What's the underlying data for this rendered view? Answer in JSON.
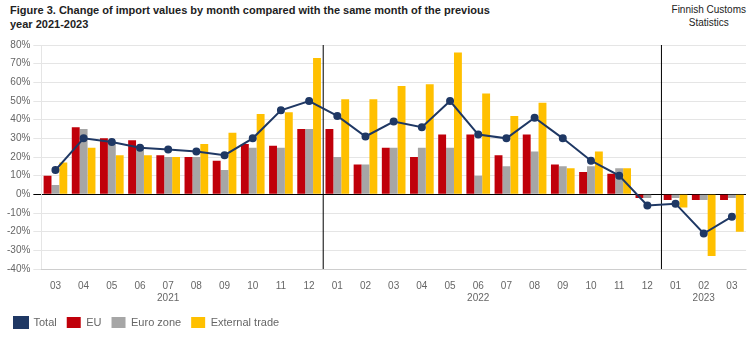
{
  "chart_data": {
    "type": "bar",
    "title": "Figure 3. Change of import values by month compared with the same month of the previous\nyear 2021-2023",
    "annotations": [
      "Finnish Customs\nStatistics"
    ],
    "categories": [
      "03",
      "04",
      "05",
      "06",
      "07",
      "08",
      "09",
      "10",
      "11",
      "12",
      "01",
      "02",
      "03",
      "04",
      "05",
      "06",
      "07",
      "08",
      "09",
      "10",
      "11",
      "12",
      "01",
      "02",
      "03"
    ],
    "category_groups": [
      "2021",
      "2021",
      "2021",
      "2021",
      "2021",
      "2021",
      "2021",
      "2021",
      "2021",
      "2021",
      "2022",
      "2022",
      "2022",
      "2022",
      "2022",
      "2022",
      "2022",
      "2022",
      "2022",
      "2022",
      "2022",
      "2022",
      "2023",
      "2023",
      "2023"
    ],
    "series": [
      {
        "name": "EU",
        "color": "#c0000a",
        "values": [
          10,
          36,
          30,
          29,
          21,
          20,
          18,
          27,
          26,
          35,
          35,
          16,
          25,
          20,
          32,
          32,
          21,
          32,
          16,
          12,
          11,
          -2,
          -3,
          -3,
          -3
        ]
      },
      {
        "name": "Euro zone",
        "color": "#a6a6a6",
        "values": [
          5,
          35,
          28,
          26,
          20,
          20,
          13,
          25,
          25,
          35,
          20,
          16,
          25,
          25,
          25,
          10,
          15,
          23,
          15,
          15,
          14,
          -2,
          -2,
          -3,
          -2
        ]
      },
      {
        "name": "External trade",
        "color": "#ffc000",
        "values": [
          17,
          25,
          21,
          21,
          20,
          27,
          33,
          43,
          44,
          73,
          51,
          51,
          58,
          59,
          76,
          54,
          42,
          49,
          14,
          23,
          14,
          0,
          -7,
          -33,
          -20
        ]
      },
      {
        "name": "Total",
        "type": "line",
        "marker": "circle",
        "color": "#1f3864",
        "values": [
          13,
          30,
          28,
          25,
          24,
          23,
          21,
          30,
          45,
          50,
          42,
          31,
          39,
          36,
          50,
          32,
          30,
          41,
          30,
          18,
          10,
          -6,
          -5,
          -21,
          -12
        ]
      }
    ],
    "ylim": [
      -40,
      80
    ],
    "yticks": [
      {
        "value": -40,
        "label": "-40%"
      },
      {
        "value": -30,
        "label": "-30%"
      },
      {
        "value": -20,
        "label": "-20%"
      },
      {
        "value": -10,
        "label": "-10%"
      },
      {
        "value": 0,
        "label": "0%"
      },
      {
        "value": 10,
        "label": "10%"
      },
      {
        "value": 20,
        "label": "20%"
      },
      {
        "value": 30,
        "label": "30%"
      },
      {
        "value": 40,
        "label": "40%"
      },
      {
        "value": 50,
        "label": "50%"
      },
      {
        "value": 60,
        "label": "60%"
      },
      {
        "value": 70,
        "label": "70%"
      },
      {
        "value": 80,
        "label": "80%"
      }
    ],
    "grid": true,
    "legend": "lower left"
  }
}
